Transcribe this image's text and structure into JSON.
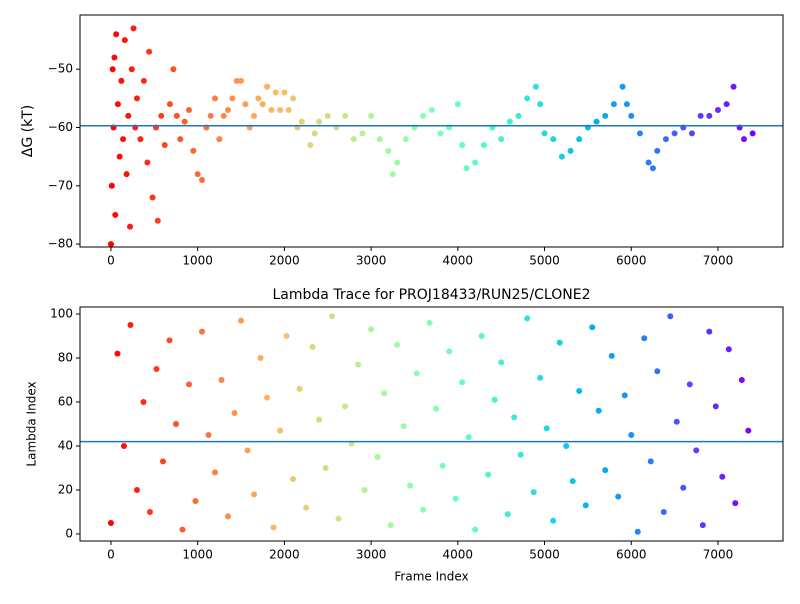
{
  "chart_data": [
    {
      "type": "scatter",
      "ylabel": "ΔG (kT)",
      "colormap": "rainbow_r",
      "x": [
        0,
        10,
        20,
        30,
        40,
        50,
        60,
        80,
        100,
        120,
        140,
        160,
        180,
        200,
        220,
        240,
        260,
        280,
        300,
        340,
        380,
        420,
        440,
        480,
        520,
        540,
        580,
        620,
        680,
        720,
        760,
        800,
        850,
        900,
        950,
        1000,
        1050,
        1100,
        1150,
        1200,
        1250,
        1300,
        1350,
        1400,
        1450,
        1500,
        1550,
        1600,
        1650,
        1700,
        1750,
        1800,
        1850,
        1900,
        1950,
        2000,
        2050,
        2100,
        2150,
        2200,
        2300,
        2350,
        2400,
        2500,
        2600,
        2700,
        2800,
        2900,
        3000,
        3100,
        3200,
        3250,
        3300,
        3400,
        3500,
        3600,
        3700,
        3800,
        3900,
        4000,
        4050,
        4100,
        4200,
        4300,
        4400,
        4500,
        4600,
        4700,
        4800,
        4900,
        4950,
        5000,
        5100,
        5200,
        5300,
        5400,
        5500,
        5600,
        5700,
        5800,
        5900,
        5950,
        6000,
        6100,
        6200,
        6250,
        6300,
        6400,
        6500,
        6600,
        6700,
        6800,
        6900,
        7000,
        7100,
        7180,
        7250,
        7300,
        7400
      ],
      "values": [
        -80,
        -70,
        -50,
        -60,
        -48,
        -75,
        -44,
        -56,
        -65,
        -52,
        -62,
        -45,
        -68,
        -58,
        -77,
        -50,
        -43,
        -60,
        -55,
        -62,
        -52,
        -66,
        -47,
        -72,
        -60,
        -76,
        -58,
        -63,
        -56,
        -50,
        -58,
        -62,
        -59,
        -57,
        -64,
        -68,
        -69,
        -60,
        -58,
        -55,
        -62,
        -58,
        -57,
        -55,
        -52,
        -52,
        -56,
        -60,
        -58,
        -55,
        -56,
        -53,
        -57,
        -54,
        -57,
        -54,
        -57,
        -55,
        -60,
        -59,
        -63,
        -61,
        -59,
        -58,
        -60,
        -58,
        -62,
        -61,
        -58,
        -62,
        -64,
        -68,
        -66,
        -62,
        -60,
        -58,
        -57,
        -61,
        -60,
        -56,
        -63,
        -67,
        -66,
        -63,
        -60,
        -62,
        -59,
        -58,
        -55,
        -53,
        -56,
        -61,
        -62,
        -65,
        -64,
        -62,
        -60,
        -59,
        -58,
        -56,
        -53,
        -56,
        -58,
        -61,
        -66,
        -67,
        -64,
        -62,
        -61,
        -60,
        -61,
        -58,
        -58,
        -57,
        -56,
        -53,
        -60,
        -62,
        -61
      ],
      "hline": -59.7,
      "hline_color": "#1f77b4",
      "xlim": [
        -357,
        7750
      ],
      "xticks": [
        0,
        1000,
        2000,
        3000,
        4000,
        5000,
        6000,
        7000
      ],
      "ylim": [
        -80.5,
        -40.7
      ],
      "yticks": [
        {
          "value": -80,
          "label": "−80"
        },
        {
          "value": -70,
          "label": "−70"
        },
        {
          "value": -60,
          "label": "−60"
        },
        {
          "value": -50,
          "label": "−50"
        }
      ]
    },
    {
      "type": "scatter",
      "title": "Lambda Trace for PROJ18433/RUN25/CLONE2",
      "xlabel": "Frame Index",
      "ylabel": "Lambda Index",
      "colormap": "rainbow_r",
      "x": [
        0,
        75,
        150,
        225,
        300,
        375,
        450,
        525,
        600,
        675,
        750,
        825,
        900,
        975,
        1050,
        1125,
        1200,
        1275,
        1350,
        1425,
        1500,
        1575,
        1650,
        1725,
        1800,
        1875,
        1950,
        2025,
        2100,
        2175,
        2250,
        2325,
        2400,
        2475,
        2550,
        2625,
        2700,
        2775,
        2850,
        2925,
        3000,
        3075,
        3150,
        3225,
        3300,
        3375,
        3450,
        3525,
        3600,
        3675,
        3750,
        3825,
        3900,
        3975,
        4050,
        4125,
        4200,
        4275,
        4350,
        4425,
        4500,
        4575,
        4650,
        4725,
        4800,
        4875,
        4950,
        5025,
        5100,
        5175,
        5250,
        5325,
        5400,
        5475,
        5550,
        5625,
        5700,
        5775,
        5850,
        5925,
        6000,
        6075,
        6150,
        6225,
        6300,
        6375,
        6450,
        6525,
        6600,
        6675,
        6750,
        6825,
        6900,
        6975,
        7050,
        7125,
        7200,
        7275,
        7350
      ],
      "values": [
        5,
        82,
        40,
        95,
        20,
        60,
        10,
        75,
        33,
        88,
        50,
        2,
        68,
        15,
        92,
        45,
        28,
        70,
        8,
        55,
        97,
        38,
        18,
        80,
        62,
        3,
        47,
        90,
        25,
        66,
        12,
        85,
        52,
        30,
        99,
        7,
        58,
        41,
        77,
        20,
        93,
        35,
        64,
        4,
        86,
        49,
        22,
        73,
        11,
        96,
        57,
        31,
        83,
        16,
        69,
        44,
        2,
        90,
        27,
        61,
        78,
        9,
        53,
        36,
        98,
        19,
        71,
        48,
        6,
        87,
        40,
        24,
        65,
        13,
        94,
        56,
        29,
        81,
        17,
        63,
        45,
        1,
        89,
        33,
        74,
        10,
        99,
        51,
        21,
        68,
        38,
        4,
        92,
        58,
        26,
        84,
        14,
        70,
        47
      ],
      "hline": 42,
      "hline_color": "#1f77b4",
      "xlim": [
        -357,
        7750
      ],
      "xticks": [
        0,
        1000,
        2000,
        3000,
        4000,
        5000,
        6000,
        7000
      ],
      "ylim": [
        -3.2,
        103.2
      ],
      "yticks": [
        0,
        20,
        40,
        60,
        80,
        100
      ]
    }
  ]
}
